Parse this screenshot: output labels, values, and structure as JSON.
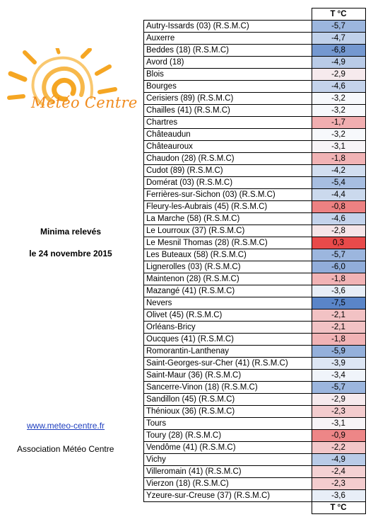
{
  "logo": {
    "text": "Météo Centre",
    "sun_color": "#f08a1c"
  },
  "side": {
    "title": "Minima relevés",
    "date": "le 24 novembre 2015",
    "link": "www.meteo-centre.fr",
    "association": "Association Météo Centre"
  },
  "table": {
    "header": "T °C",
    "footer": "T °C",
    "color_scale": {
      "cold": "#5a85c8",
      "neutral": "#f7f9fc",
      "warm": "#e84a4a"
    },
    "rows": [
      {
        "station": "Autry-Issards (03) (R.S.M.C)",
        "temp": "-5,7"
      },
      {
        "station": "Auxerre",
        "temp": "-4,7"
      },
      {
        "station": "Beddes (18) (R.S.M.C)",
        "temp": "-6,8"
      },
      {
        "station": "Avord (18)",
        "temp": "-4,9"
      },
      {
        "station": "Blois",
        "temp": "-2,9"
      },
      {
        "station": "Bourges",
        "temp": "-4,6"
      },
      {
        "station": "Cerisiers (89) (R.S.M.C)",
        "temp": "-3,2"
      },
      {
        "station": "Chailles (41) (R.S.M.C)",
        "temp": "-3,2"
      },
      {
        "station": "Chartres",
        "temp": "-1,7"
      },
      {
        "station": "Châteaudun",
        "temp": "-3,2"
      },
      {
        "station": "Châteauroux",
        "temp": "-3,1"
      },
      {
        "station": "Chaudon (28) (R.S.M.C)",
        "temp": "-1,8"
      },
      {
        "station": "Cudot (89) (R.S.M.C)",
        "temp": "-4,2"
      },
      {
        "station": "Domérat (03) (R.S.M.C)",
        "temp": "-5,4"
      },
      {
        "station": "Ferrières-sur-Sichon (03) (R.S.M.C)",
        "temp": "-4,4"
      },
      {
        "station": "Fleury-les-Aubrais (45) (R.S.M.C)",
        "temp": "-0,8"
      },
      {
        "station": "La Marche (58) (R.S.M.C)",
        "temp": "-4,6"
      },
      {
        "station": "Le Lourroux (37) (R.S.M.C)",
        "temp": "-2,8"
      },
      {
        "station": "Le Mesnil Thomas (28) (R.S.M.C)",
        "temp": "0,3"
      },
      {
        "station": "Les Buteaux (58) (R.S.M.C)",
        "temp": "-5,7"
      },
      {
        "station": "Lignerolles (03) (R.S.M.C)",
        "temp": "-6,0"
      },
      {
        "station": "Maintenon (28) (R.S.M.C)",
        "temp": "-1,8"
      },
      {
        "station": "Mazangé (41) (R.S.M.C)",
        "temp": "-3,6"
      },
      {
        "station": "Nevers",
        "temp": "-7,5"
      },
      {
        "station": "Olivet (45) (R.S.M.C)",
        "temp": "-2,1"
      },
      {
        "station": "Orléans-Bricy",
        "temp": "-2,1"
      },
      {
        "station": "Oucques (41) (R.S.M.C)",
        "temp": "-1,8"
      },
      {
        "station": "Romorantin-Lanthenay",
        "temp": "-5,9"
      },
      {
        "station": "Saint-Georges-sur-Cher (41) (R.S.M.C)",
        "temp": "-3,9"
      },
      {
        "station": "Saint-Maur (36) (R.S.M.C)",
        "temp": "-3,4"
      },
      {
        "station": "Sancerre-Vinon  (18) (R.S.M.C)",
        "temp": "-5,7"
      },
      {
        "station": "Sandillon (45) (R.S.M.C)",
        "temp": "-2,9"
      },
      {
        "station": "Thénioux (36) (R.S.M.C)",
        "temp": "-2,3"
      },
      {
        "station": "Tours",
        "temp": "-3,1"
      },
      {
        "station": "Toury (28) (R.S.M.C)",
        "temp": "-0,9"
      },
      {
        "station": "Vendôme (41) (R.S.M.C)",
        "temp": "-2,2"
      },
      {
        "station": "Vichy",
        "temp": "-4,9"
      },
      {
        "station": "Villeromain (41) (R.S.M.C)",
        "temp": "-2,4"
      },
      {
        "station": "Vierzon (18) (R.S.M.C)",
        "temp": "-2,3"
      },
      {
        "station": "Yzeure-sur-Creuse (37) (R.S.M.C)",
        "temp": "-3,6"
      }
    ]
  }
}
